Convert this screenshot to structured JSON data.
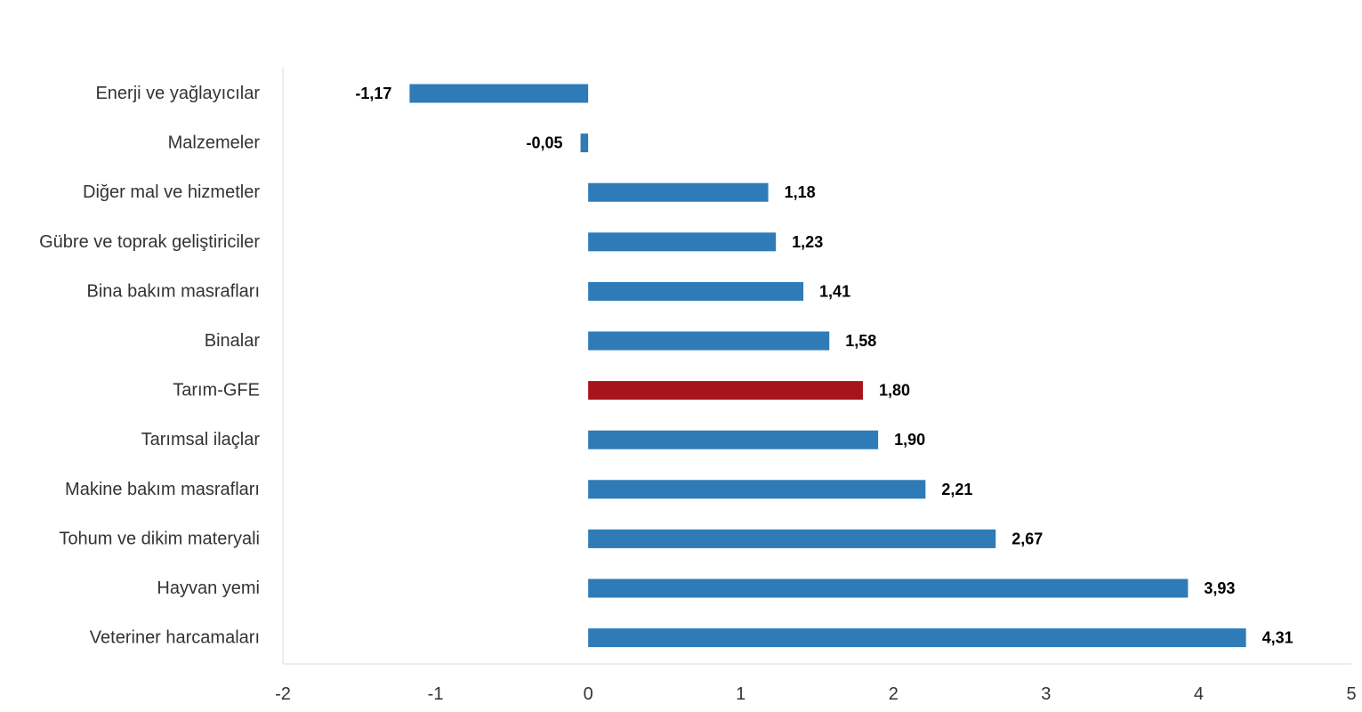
{
  "chart_data": {
    "type": "bar",
    "orientation": "horizontal",
    "categories": [
      "Enerji  ve yağlayıcılar",
      "Malzemeler",
      "Diğer mal ve hizmetler",
      "Gübre ve toprak geliştiriciler",
      "Bina bakım masrafları",
      "Binalar",
      "Tarım-GFE",
      "Tarımsal ilaçlar",
      "Makine bakım masrafları",
      "Tohum ve dikim materyali",
      "Hayvan yemi",
      "Veteriner harcamaları"
    ],
    "values": [
      -1.17,
      -0.05,
      1.18,
      1.23,
      1.41,
      1.58,
      1.8,
      1.9,
      2.21,
      2.67,
      3.93,
      4.31
    ],
    "value_labels": [
      "-1,17",
      "-0,05",
      "1,18",
      "1,23",
      "1,41",
      "1,58",
      "1,80",
      "1,90",
      "2,21",
      "2,67",
      "3,93",
      "4,31"
    ],
    "highlight_category": "Tarım-GFE",
    "xlim": [
      -2,
      5
    ],
    "xticks": [
      -2,
      -1,
      0,
      1,
      2,
      3,
      4,
      5
    ],
    "xtick_labels": [
      "-2",
      "-1",
      "0",
      "1",
      "2",
      "3",
      "4",
      "5"
    ],
    "title": "",
    "xlabel": "",
    "ylabel": "",
    "grid": false,
    "legend": "none",
    "colors": {
      "bar": "#2E7BB7",
      "highlight": "#A8141B",
      "axis": "#D9D9D9"
    }
  }
}
